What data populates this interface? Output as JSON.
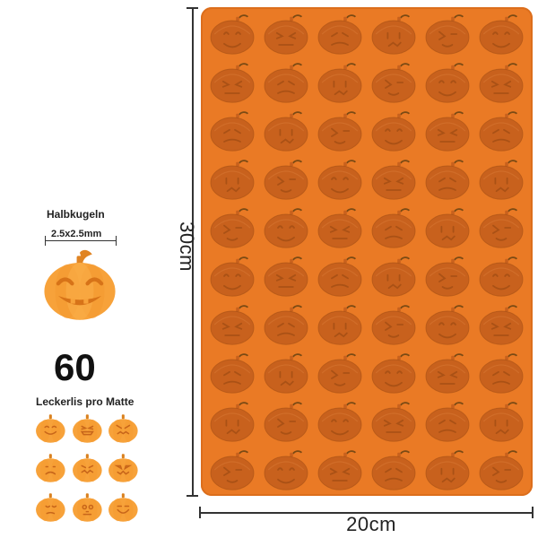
{
  "labels": {
    "height": "30cm",
    "width": "20cm",
    "shape_name": "Halbkugeln",
    "shape_size": "2.5x2.5mm",
    "count": "60",
    "count_caption": "Leckerlis pro Matte"
  },
  "colors": {
    "mat": "#ea7a25",
    "cavity": "#c8611d",
    "pumpkin": "#f7a23a",
    "stem": "#7a4a14"
  },
  "mat": {
    "rows": 10,
    "columns": 6,
    "cavity_icon": "pumpkin-cavity-icon"
  },
  "hero_icon": "jack-o-lantern-smiling-icon",
  "face_variants": [
    "smile",
    "grin",
    "angry",
    "sad",
    "zigzag",
    "evil",
    "frown",
    "skull",
    "happy"
  ]
}
